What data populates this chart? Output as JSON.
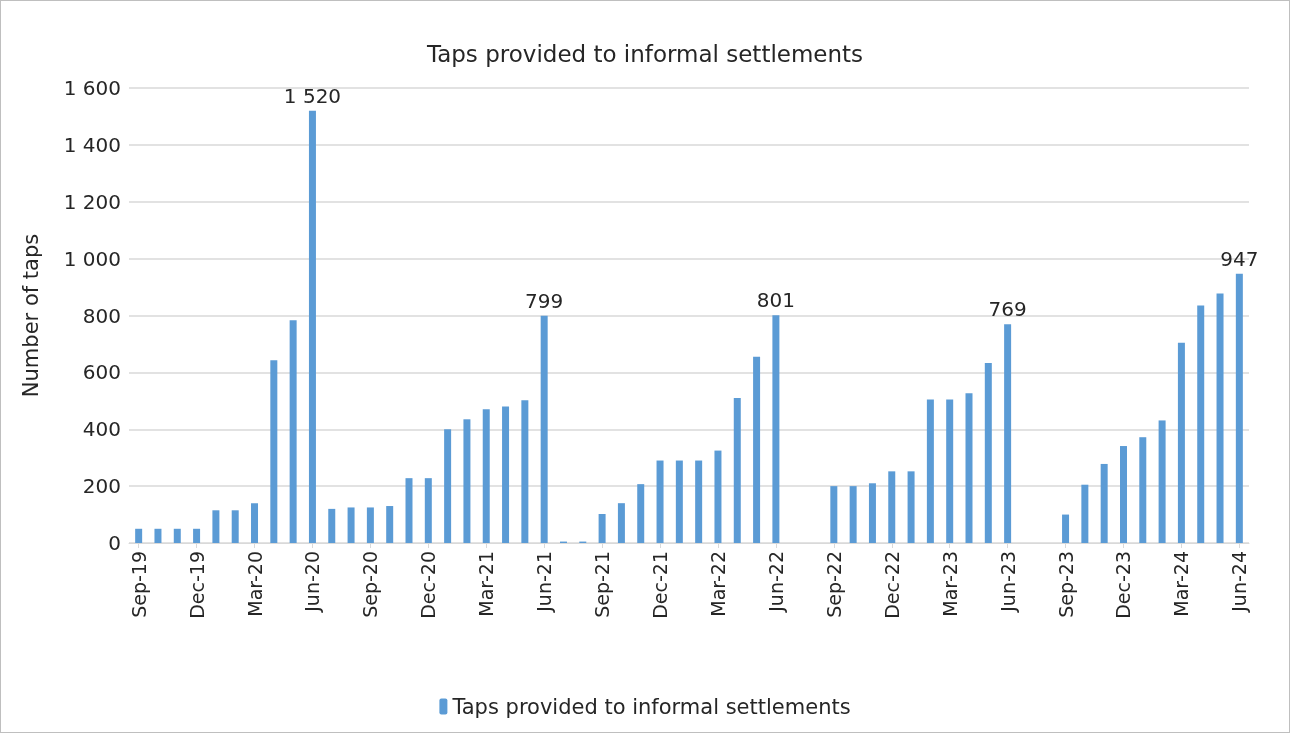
{
  "chart_data": {
    "type": "bar",
    "title": "Taps provided to informal settlements",
    "ylabel": "Number of taps",
    "categories": [
      "Sep-19",
      null,
      null,
      "Dec-19",
      null,
      null,
      "Mar-20",
      null,
      null,
      "Jun-20",
      null,
      null,
      "Sep-20",
      null,
      null,
      "Dec-20",
      null,
      null,
      "Mar-21",
      null,
      null,
      "Jun-21",
      null,
      null,
      "Sep-21",
      null,
      null,
      "Dec-21",
      null,
      null,
      "Mar-22",
      null,
      null,
      "Jun-22",
      null,
      null,
      "Sep-22",
      null,
      null,
      "Dec-22",
      null,
      null,
      "Mar-23",
      null,
      null,
      "Jun-23",
      null,
      null,
      "Sep-23",
      null,
      null,
      "Dec-23",
      null,
      null,
      "Mar-24",
      null,
      null,
      "Jun-24"
    ],
    "series": [
      {
        "name": "Taps provided to informal settlements",
        "color": "#5b9bd5",
        "values": [
          50,
          50,
          50,
          50,
          115,
          115,
          140,
          643,
          783,
          1520,
          120,
          125,
          125,
          130,
          228,
          228,
          400,
          435,
          470,
          480,
          502,
          799,
          5,
          5,
          102,
          140,
          207,
          290,
          290,
          290,
          325,
          510,
          655,
          801,
          0,
          0,
          200,
          200,
          210,
          252,
          252,
          505,
          505,
          527,
          633,
          769,
          0,
          0,
          100,
          205,
          278,
          341,
          372,
          431,
          704,
          835,
          877,
          947
        ],
        "value_labels": [
          null,
          null,
          null,
          null,
          null,
          null,
          null,
          null,
          null,
          "1 520",
          null,
          null,
          null,
          null,
          null,
          null,
          null,
          null,
          null,
          null,
          null,
          "799",
          null,
          null,
          null,
          null,
          null,
          null,
          null,
          null,
          null,
          null,
          null,
          "801",
          null,
          null,
          null,
          null,
          null,
          null,
          null,
          null,
          null,
          null,
          null,
          "769",
          null,
          null,
          null,
          null,
          null,
          null,
          null,
          null,
          null,
          null,
          null,
          "947"
        ]
      }
    ],
    "ylim": [
      0,
      1600
    ],
    "yticks": [
      0,
      200,
      400,
      600,
      800,
      {
        "value": 1000,
        "label": "1 000"
      },
      {
        "value": 1200,
        "label": "1 200"
      },
      {
        "value": 1400,
        "label": "1 400"
      },
      {
        "value": 1600,
        "label": "1 600"
      }
    ],
    "grid": "y",
    "legend": "bottom"
  }
}
